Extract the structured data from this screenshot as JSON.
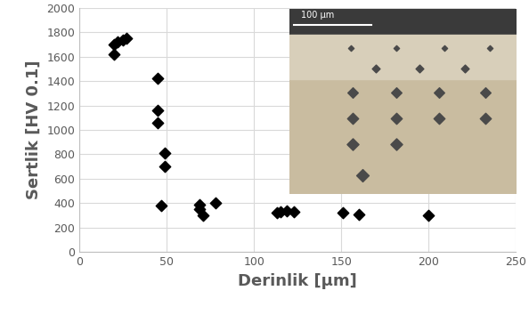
{
  "chart_data": {
    "type": "scatter",
    "x_label": "Derinlik [µm]",
    "y_label": "Sertlik [HV 0.1]",
    "x": [
      20,
      20,
      22,
      25,
      27,
      45,
      45,
      45,
      47,
      49,
      49,
      69,
      69,
      71,
      78,
      113,
      115,
      119,
      123,
      151,
      160,
      200
    ],
    "values": [
      1700,
      1620,
      1720,
      1740,
      1750,
      1420,
      1160,
      1060,
      380,
      810,
      700,
      390,
      350,
      300,
      400,
      320,
      330,
      340,
      330,
      320,
      310,
      300
    ],
    "color": "#000000",
    "marker": "diamond",
    "xlim": [
      0,
      250
    ],
    "xticks": [
      0,
      50,
      100,
      150,
      200,
      250
    ],
    "ylim": [
      0,
      2000
    ],
    "yticks": [
      0,
      200,
      400,
      600,
      800,
      1000,
      1200,
      1400,
      1600,
      1800,
      2000
    ],
    "grid": true,
    "annotations": [
      "100 µm"
    ]
  }
}
